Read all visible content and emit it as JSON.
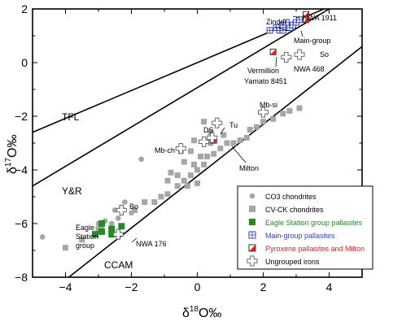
{
  "chart_data": {
    "type": "scatter",
    "xlabel_symbol": "δ",
    "xlabel_sup": "18",
    "xlabel_rest": "O‰",
    "ylabel_symbol": "δ",
    "ylabel_sup": "17",
    "ylabel_rest": "O‰",
    "xlim": [
      -5,
      5
    ],
    "ylim": [
      -8,
      2
    ],
    "xticks": [
      -4,
      -2,
      0,
      2,
      4
    ],
    "yticks": [
      -8,
      -6,
      -4,
      -2,
      0,
      2
    ],
    "grid": false,
    "legend_position": "bottom-right",
    "lines": [
      {
        "name": "TFL",
        "x": [
          -5,
          5
        ],
        "y": [
          -2.6,
          2.6
        ]
      },
      {
        "name": "Y&R",
        "x": [
          -5,
          4
        ],
        "y": [
          -4.6,
          2.0
        ]
      },
      {
        "name": "CCAM",
        "x": [
          -3.9,
          5
        ],
        "y": [
          -8.0,
          0.6
        ]
      }
    ],
    "series": [
      {
        "name": "CO3 chondrites",
        "marker": "circle",
        "color": "#a6a6a6",
        "points": [
          [
            -4.7,
            -6.5
          ],
          [
            -3.0,
            -6.0
          ],
          [
            -2.8,
            -5.9
          ],
          [
            -2.5,
            -5.5
          ],
          [
            -2.6,
            -6.0
          ],
          [
            -2.3,
            -5.4
          ],
          [
            -2.2,
            -5.2
          ],
          [
            -2.4,
            -5.8
          ],
          [
            -2.0,
            -5.6
          ],
          [
            -1.7,
            -3.6
          ],
          [
            -2.9,
            -6.2
          ]
        ]
      },
      {
        "name": "CV-CK chondrites",
        "marker": "square",
        "color": "#a6a6a6",
        "points": [
          [
            -4.0,
            -6.9
          ],
          [
            -3.5,
            -6.6
          ],
          [
            -3.0,
            -6.2
          ],
          [
            -1.9,
            -5.5
          ],
          [
            -1.6,
            -5.2
          ],
          [
            -1.3,
            -5.2
          ],
          [
            -1.1,
            -5.0
          ],
          [
            -0.9,
            -4.9
          ],
          [
            -0.6,
            -4.6
          ],
          [
            -0.3,
            -4.6
          ],
          [
            -0.9,
            -4.4
          ],
          [
            -0.4,
            -4.4
          ],
          [
            -0.6,
            -4.2
          ],
          [
            -0.2,
            -4.2
          ],
          [
            0.0,
            -4.0
          ],
          [
            -0.1,
            -3.8
          ],
          [
            0.2,
            -3.8
          ],
          [
            -0.4,
            -3.7
          ],
          [
            0.1,
            -3.5
          ],
          [
            -0.2,
            -3.3
          ],
          [
            -0.5,
            -3.3
          ],
          [
            0.3,
            -3.5
          ],
          [
            0.5,
            -3.4
          ],
          [
            0.7,
            -3.2
          ],
          [
            0.9,
            -3.0
          ],
          [
            0.8,
            -2.7
          ],
          [
            1.1,
            -3.0
          ],
          [
            0.4,
            -2.6
          ],
          [
            -0.1,
            -2.9
          ],
          [
            0.2,
            -2.2
          ],
          [
            1.3,
            -2.9
          ],
          [
            1.5,
            -2.8
          ],
          [
            1.6,
            -2.5
          ],
          [
            1.8,
            -2.4
          ],
          [
            2.0,
            -2.2
          ],
          [
            2.3,
            -2.1
          ],
          [
            2.6,
            -1.9
          ],
          [
            2.8,
            -1.8
          ],
          [
            3.1,
            -1.7
          ],
          [
            -0.8,
            -4.1
          ],
          [
            0.0,
            -4.5
          ],
          [
            0.4,
            -3.0
          ]
        ]
      },
      {
        "name": "Eagle Station group pallasites",
        "marker": "square",
        "color": "#228b22",
        "points": [
          [
            -3.1,
            -6.4
          ],
          [
            -2.9,
            -6.3
          ],
          [
            -2.6,
            -6.4
          ],
          [
            -2.9,
            -6.0
          ],
          [
            -2.3,
            -6.1
          ],
          [
            -2.6,
            -6.2
          ]
        ]
      },
      {
        "name": "Main-group pallasites",
        "marker": "grid-square",
        "color": "#3344bb",
        "points": [
          [
            2.2,
            1.2
          ],
          [
            2.4,
            1.3
          ],
          [
            2.5,
            1.2
          ],
          [
            2.6,
            1.4
          ],
          [
            2.8,
            1.3
          ],
          [
            2.7,
            1.5
          ],
          [
            2.9,
            1.4
          ],
          [
            3.0,
            1.5
          ],
          [
            2.6,
            1.2
          ],
          [
            3.1,
            1.6
          ]
        ]
      },
      {
        "name": "Pyroxene pallasites and Milton",
        "marker": "half-square",
        "color": "#dd2222",
        "points": [
          [
            3.3,
            1.6
          ],
          [
            3.3,
            1.8
          ],
          [
            2.3,
            0.4
          ],
          [
            0.5,
            -2.9
          ]
        ]
      },
      {
        "name": "Ungrouped irons",
        "marker": "cross",
        "color": "#888888",
        "points": [
          [
            -2.4,
            -6.4
          ],
          [
            -2.3,
            -5.5
          ],
          [
            -0.5,
            -3.2
          ],
          [
            0.2,
            -2.95
          ],
          [
            0.45,
            -2.8
          ],
          [
            0.6,
            -2.25
          ],
          [
            2.0,
            -1.85
          ],
          [
            2.7,
            0.2
          ],
          [
            3.1,
            0.3
          ]
        ]
      }
    ],
    "annotations": [
      "TFL",
      "Y&R",
      "CCAM",
      "Zinder",
      "NWA 1911",
      "Main-group",
      "So",
      "NWA 468",
      "Vermillion",
      "Yamato 8451",
      "Mb-si",
      "DS",
      "Tu",
      "Mb-ch",
      "Milton",
      "Bo",
      "Eagle",
      "Station",
      "group",
      "NWA 176"
    ]
  }
}
